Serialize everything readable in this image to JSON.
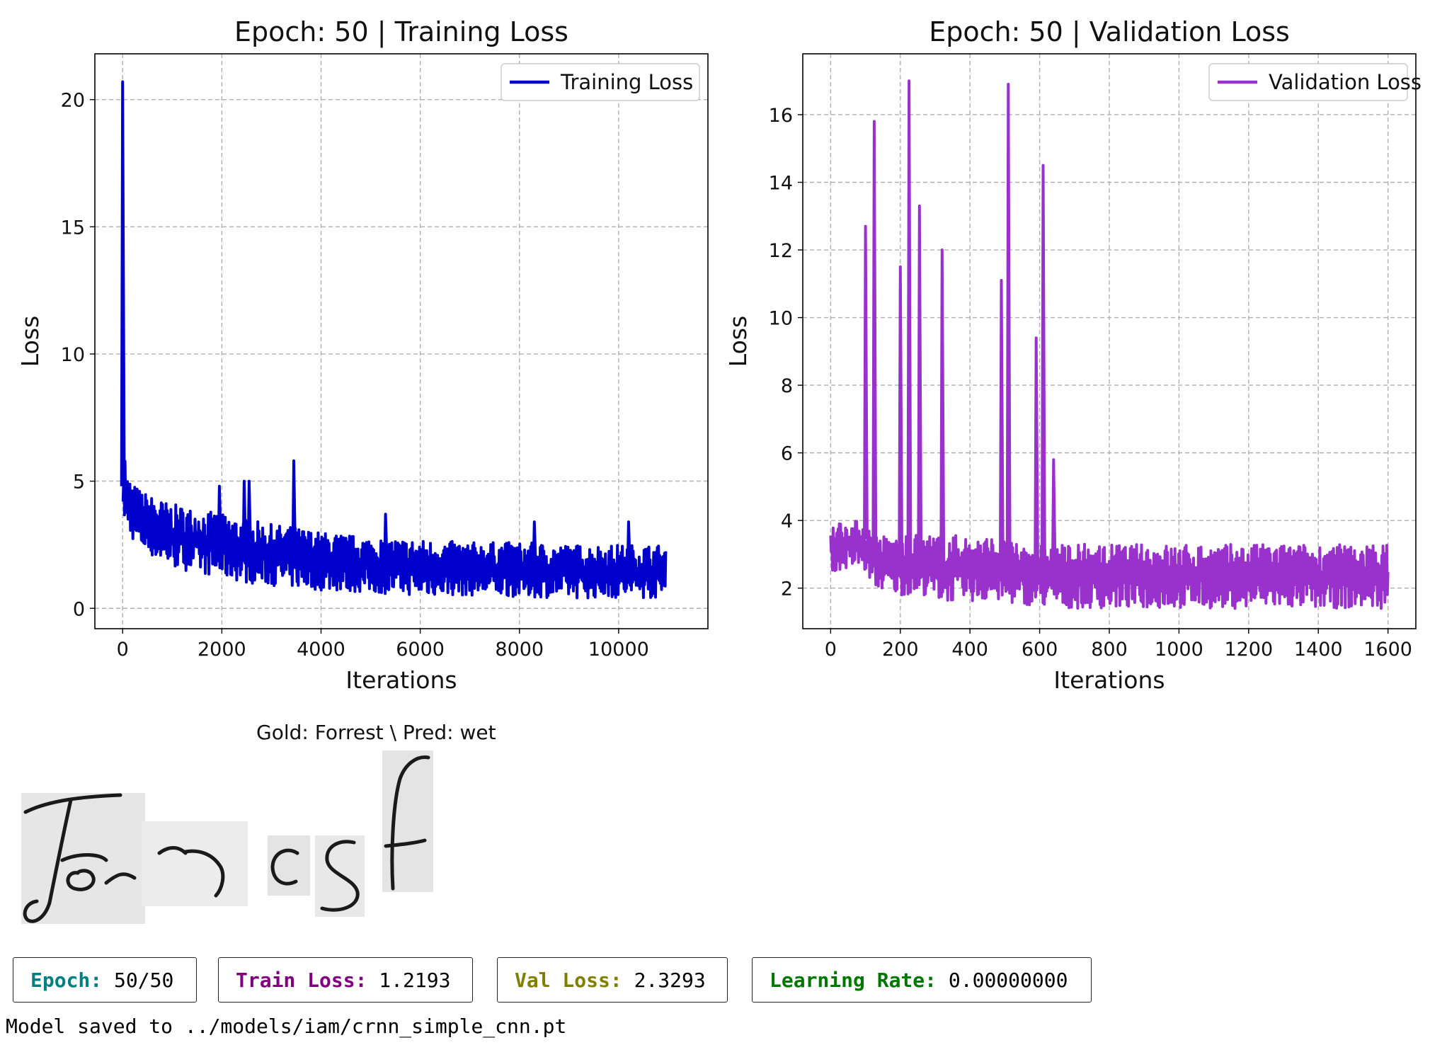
{
  "chart_data": [
    {
      "type": "line",
      "title": "Epoch: 50 | Training Loss",
      "xlabel": "Iterations",
      "ylabel": "Loss",
      "xlim": [
        -560,
        11800
      ],
      "ylim": [
        -0.8,
        21.8
      ],
      "xticks": [
        0,
        2000,
        4000,
        6000,
        8000,
        10000
      ],
      "yticks": [
        0,
        5,
        10,
        15,
        20
      ],
      "grid": true,
      "legend": "top-right",
      "series": [
        {
          "name": "Training Loss",
          "color": "#0000cc",
          "x": [
            0,
            30,
            60,
            100,
            200,
            400,
            700,
            1000,
            1500,
            2000,
            2500,
            3000,
            3500,
            4000,
            5000,
            6000,
            7000,
            8000,
            9000,
            10000,
            10950
          ],
          "upper": [
            20.7,
            7.0,
            5.6,
            5.2,
            4.9,
            4.6,
            4.3,
            4.1,
            3.9,
            3.7,
            3.5,
            3.3,
            3.2,
            3.0,
            2.8,
            2.7,
            2.6,
            2.6,
            2.5,
            2.5,
            2.5
          ],
          "lower": [
            4.0,
            3.4,
            3.2,
            3.0,
            2.7,
            2.3,
            1.9,
            1.6,
            1.4,
            1.2,
            1.0,
            0.9,
            0.8,
            0.7,
            0.6,
            0.5,
            0.5,
            0.45,
            0.4,
            0.4,
            0.4
          ],
          "spikes": [
            [
              0,
              20.7
            ],
            [
              30,
              5.6
            ],
            [
              1950,
              4.8
            ],
            [
              2450,
              5.0
            ],
            [
              2550,
              5.0
            ],
            [
              3450,
              5.8
            ],
            [
              5300,
              3.7
            ],
            [
              8300,
              3.4
            ],
            [
              10200,
              3.4
            ]
          ]
        }
      ]
    },
    {
      "type": "line",
      "title": "Epoch: 50 | Validation Loss",
      "xlabel": "Iterations",
      "ylabel": "Loss",
      "xlim": [
        -80,
        1680
      ],
      "ylim": [
        0.8,
        17.8
      ],
      "xticks": [
        0,
        200,
        400,
        600,
        800,
        1000,
        1200,
        1400,
        1600
      ],
      "yticks": [
        2,
        4,
        6,
        8,
        10,
        12,
        14,
        16
      ],
      "grid": true,
      "legend": "top-right",
      "series": [
        {
          "name": "Validation Loss",
          "color": "#9932cc",
          "x": [
            0,
            90,
            130,
            190,
            270,
            320,
            480,
            530,
            570,
            640,
            700,
            800,
            1000,
            1200,
            1400,
            1600
          ],
          "upper": [
            4.0,
            4.0,
            3.6,
            3.5,
            3.6,
            3.6,
            3.5,
            3.3,
            3.3,
            3.3,
            3.3,
            3.3,
            3.3,
            3.3,
            3.3,
            3.3
          ],
          "lower": [
            2.5,
            2.6,
            2.0,
            1.8,
            1.8,
            1.6,
            1.6,
            1.5,
            1.5,
            1.4,
            1.4,
            1.4,
            1.4,
            1.4,
            1.4,
            1.4
          ],
          "spikes": [
            [
              100,
              12.7
            ],
            [
              125,
              15.8
            ],
            [
              200,
              11.5
            ],
            [
              225,
              17.0
            ],
            [
              255,
              13.3
            ],
            [
              320,
              12.0
            ],
            [
              490,
              11.1
            ],
            [
              510,
              16.9
            ],
            [
              590,
              9.4
            ],
            [
              610,
              14.5
            ],
            [
              640,
              5.8
            ]
          ]
        }
      ]
    }
  ],
  "sample": {
    "title": "Gold: Forrest \\ Pred: wet"
  },
  "metrics": [
    {
      "label": "Epoch:",
      "value": " 50/50",
      "color": "#008080"
    },
    {
      "label": "Train Loss:",
      "value": " 1.2193",
      "color": "#800080"
    },
    {
      "label": "Val Loss:",
      "value": " 2.3293",
      "color": "#808000"
    },
    {
      "label": "Learning Rate:",
      "value": " 0.00000000",
      "color": "#007700"
    }
  ],
  "status": {
    "saved": "Model saved to ../models/iam/crnn_simple_cnn.pt"
  }
}
